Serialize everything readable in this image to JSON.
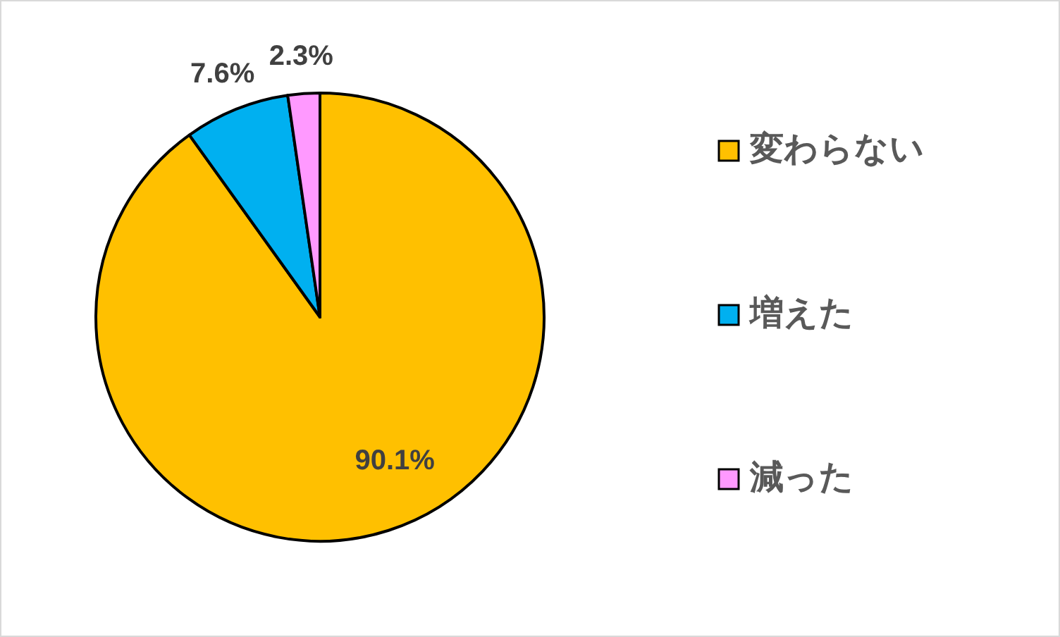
{
  "chart_data": {
    "type": "pie",
    "categories": [
      "変わらない",
      "増えた",
      "減った"
    ],
    "values": [
      90.1,
      7.6,
      2.3
    ],
    "colors": [
      "#ffc000",
      "#00b0f0",
      "#ff99ff"
    ],
    "value_labels": [
      "90.1%",
      "7.6%",
      "2.3%"
    ],
    "legend": "right"
  }
}
